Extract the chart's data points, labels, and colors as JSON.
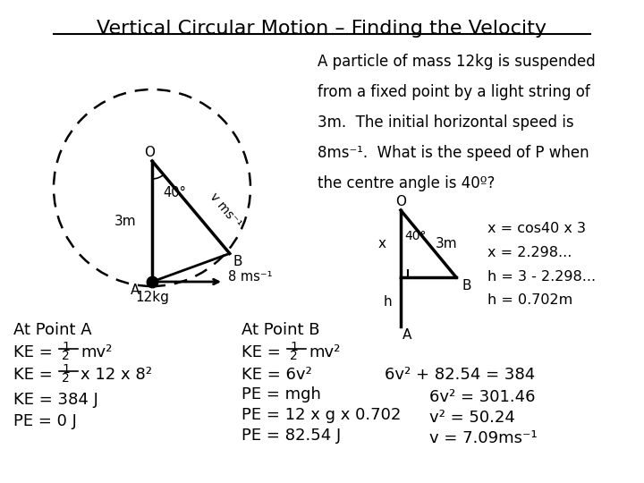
{
  "title": "Vertical Circular Motion – Finding the Velocity",
  "bg": "#ffffff",
  "problem_lines": [
    "A particle of mass 12kg is suspended",
    "from a fixed point by a light string of",
    "3m.  The initial horizontal speed is",
    "8ms⁻¹.  What is the speed of P when",
    "the centre angle is 40º?"
  ]
}
